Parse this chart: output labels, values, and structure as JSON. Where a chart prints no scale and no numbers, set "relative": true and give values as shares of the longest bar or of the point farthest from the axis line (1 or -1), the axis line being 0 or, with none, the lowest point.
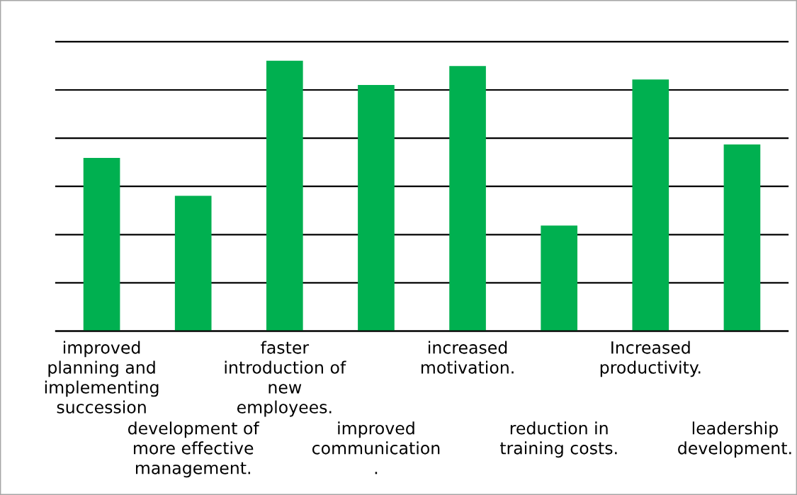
{
  "chart_data": {
    "type": "bar",
    "categories": [
      "improved\nplanning and\nimplementing\nsuccession",
      "development of\nmore effective\nmanagement.",
      "faster\nintroduction of\nnew\nemployees.",
      "improved\ncommunication\n.",
      "increased\nmotivation.",
      "reduction in\ntraining costs.",
      "Increased\nproductivity.",
      "leadership\ndevelopment."
    ],
    "values": [
      0.64,
      0.5,
      1,
      0.91,
      0.98,
      0.39,
      0.93,
      0.69
    ],
    "color": "#00b050",
    "relative": true,
    "grid": "y",
    "tick_labels": "x"
  }
}
